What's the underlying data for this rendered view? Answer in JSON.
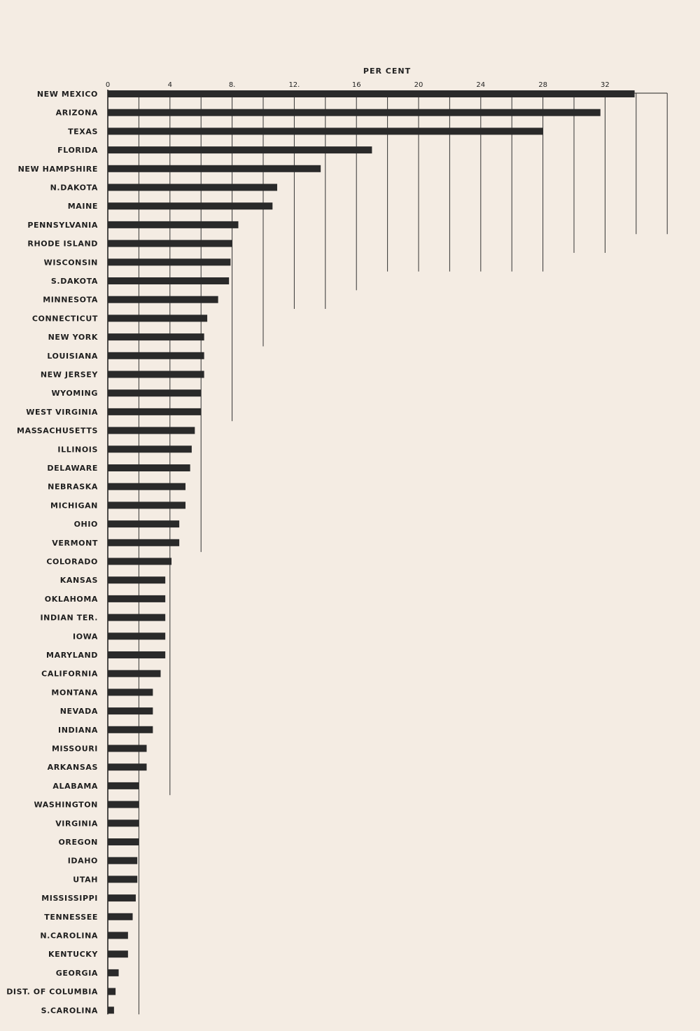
{
  "chart_data": {
    "type": "bar",
    "orientation": "horizontal",
    "title": "",
    "xlabel": "PER CENT",
    "ylabel": "",
    "xlim": [
      0,
      36
    ],
    "xticks": [
      0,
      4,
      8,
      12,
      16,
      20,
      24,
      28,
      32
    ],
    "xtick_labels": [
      "0",
      "4",
      "8.",
      "12.",
      "16",
      "20",
      "24",
      "28",
      "32"
    ],
    "grid": "vertical staggered lines",
    "legend": "none",
    "bar_color": "#2a2a2a",
    "background_color": "#f4ece3",
    "categories": [
      "NEW MEXICO",
      "ARIZONA",
      "TEXAS",
      "FLORIDA",
      "NEW HAMPSHIRE",
      "N.DAKOTA",
      "MAINE",
      "PENNSYLVANIA",
      "RHODE ISLAND",
      "WISCONSIN",
      "S.DAKOTA",
      "MINNESOTA",
      "CONNECTICUT",
      "NEW YORK",
      "LOUISIANA",
      "NEW JERSEY",
      "WYOMING",
      "WEST VIRGINIA",
      "MASSACHUSETTS",
      "ILLINOIS",
      "DELAWARE",
      "NEBRASKA",
      "MICHIGAN",
      "OHIO",
      "VERMONT",
      "COLORADO",
      "KANSAS",
      "OKLAHOMA",
      "INDIAN TER.",
      "IOWA",
      "MARYLAND",
      "CALIFORNIA",
      "MONTANA",
      "NEVADA",
      "INDIANA",
      "MISSOURI",
      "ARKANSAS",
      "ALABAMA",
      "WASHINGTON",
      "VIRGINIA",
      "OREGON",
      "IDAHO",
      "UTAH",
      "MISSISSIPPI",
      "TENNESSEE",
      "N.CAROLINA",
      "KENTUCKY",
      "GEORGIA",
      "DIST. OF COLUMBIA",
      "S.CAROLINA"
    ],
    "values": [
      33.9,
      31.7,
      28.0,
      17.0,
      13.7,
      10.9,
      10.6,
      8.4,
      8.0,
      7.9,
      7.8,
      7.1,
      6.4,
      6.2,
      6.2,
      6.2,
      6.0,
      6.0,
      5.6,
      5.4,
      5.3,
      5.0,
      5.0,
      4.6,
      4.6,
      4.1,
      3.7,
      3.7,
      3.7,
      3.7,
      3.7,
      3.4,
      2.9,
      2.9,
      2.9,
      2.5,
      2.5,
      2.0,
      2.0,
      2.0,
      2.0,
      1.9,
      1.9,
      1.8,
      1.6,
      1.3,
      1.3,
      0.7,
      0.5,
      0.4
    ]
  }
}
